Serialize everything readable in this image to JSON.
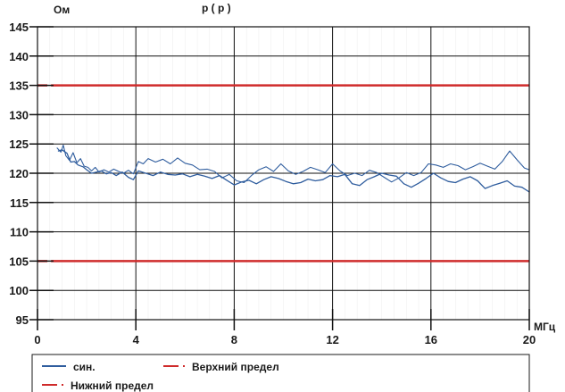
{
  "chart_data": {
    "type": "line",
    "title_fragment": "р                      (      р      )",
    "ylabel": "Ом",
    "xlabel": "МГц",
    "xlim": [
      0,
      20
    ],
    "ylim": [
      95,
      145
    ],
    "xticks": [
      0,
      4,
      8,
      12,
      16,
      20
    ],
    "xtick_labels": [
      "0",
      "4",
      "8",
      "12",
      "16",
      "20"
    ],
    "yticks": [
      95,
      100,
      105,
      110,
      115,
      120,
      125,
      130,
      135,
      140,
      145
    ],
    "ytick_labels": [
      "95",
      "100",
      "105",
      "110",
      "115",
      "120",
      "125",
      "130",
      "135",
      "140",
      "145"
    ],
    "grid": true,
    "legend_position": "bottom",
    "colors": {
      "series": "#2f5d9e",
      "limit": "#cf2b2b",
      "grid": "#111111",
      "minor_grid": "#c8c8c8"
    },
    "series": [
      {
        "name": "син.",
        "x": [
          0.8,
          0.95,
          1.05,
          1.15,
          1.3,
          1.45,
          1.6,
          1.75,
          1.9,
          2.05,
          2.2,
          2.35,
          2.5,
          2.7,
          2.9,
          3.1,
          3.3,
          3.5,
          3.7,
          3.9,
          4.1,
          4.3,
          4.5,
          4.8,
          5.1,
          5.4,
          5.7,
          6.0,
          6.3,
          6.6,
          6.9,
          7.2,
          7.5,
          7.8,
          8.1,
          8.4,
          8.7,
          9.0,
          9.3,
          9.6,
          9.9,
          10.2,
          10.5,
          10.8,
          11.1,
          11.4,
          11.7,
          12.0,
          12.3,
          12.6,
          12.9,
          13.2,
          13.5,
          13.8,
          14.1,
          14.4,
          14.7,
          15.0,
          15.3,
          15.6,
          15.9,
          16.2,
          16.5,
          16.8,
          17.1,
          17.4,
          17.7,
          18.0,
          18.3,
          18.6,
          18.9,
          19.2,
          19.5,
          19.8,
          20.0
        ],
        "y": [
          124.3,
          123.6,
          124.8,
          123.0,
          122.2,
          123.5,
          121.8,
          122.5,
          121.2,
          121.0,
          120.4,
          121.0,
          120.2,
          120.6,
          120.2,
          120.7,
          120.3,
          120.0,
          120.5,
          119.9,
          122.0,
          121.6,
          122.5,
          121.9,
          122.4,
          121.6,
          122.6,
          121.7,
          121.4,
          120.6,
          120.7,
          120.3,
          119.2,
          119.8,
          118.7,
          118.4,
          119.6,
          120.6,
          121.1,
          120.3,
          121.6,
          120.4,
          119.8,
          120.3,
          121.0,
          120.6,
          120.1,
          121.6,
          120.4,
          119.6,
          120.0,
          119.6,
          120.5,
          120.1,
          119.3,
          118.5,
          119.2,
          120.1,
          119.6,
          120.1,
          121.6,
          121.4,
          121.0,
          121.6,
          121.3,
          120.6,
          121.1,
          121.7,
          121.2,
          120.7,
          122.0,
          123.8,
          122.3,
          120.9,
          120.6
        ]
      },
      {
        "name": "син.",
        "x": [
          0.85,
          1.0,
          1.2,
          1.35,
          1.5,
          1.65,
          1.85,
          2.0,
          2.2,
          2.4,
          2.6,
          2.8,
          3.0,
          3.2,
          3.45,
          3.7,
          3.9,
          4.1,
          4.4,
          4.7,
          5.0,
          5.3,
          5.6,
          5.9,
          6.2,
          6.5,
          6.8,
          7.1,
          7.4,
          7.7,
          8.0,
          8.3,
          8.6,
          8.9,
          9.2,
          9.5,
          9.8,
          10.1,
          10.4,
          10.7,
          11.0,
          11.3,
          11.6,
          11.9,
          12.2,
          12.5,
          12.8,
          13.1,
          13.4,
          13.7,
          14.0,
          14.3,
          14.6,
          14.9,
          15.2,
          15.5,
          15.8,
          16.1,
          16.4,
          16.7,
          17.0,
          17.3,
          17.6,
          17.9,
          18.2,
          18.5,
          18.8,
          19.1,
          19.4,
          19.7,
          20.0
        ],
        "y": [
          123.8,
          124.0,
          123.4,
          121.9,
          122.0,
          121.4,
          121.1,
          120.6,
          120.0,
          120.2,
          120.4,
          119.9,
          120.1,
          119.6,
          120.2,
          119.3,
          118.9,
          120.4,
          120.0,
          119.6,
          120.2,
          119.8,
          119.7,
          119.9,
          119.4,
          119.8,
          119.5,
          119.1,
          119.6,
          118.8,
          118.0,
          118.5,
          118.8,
          118.2,
          118.9,
          119.4,
          119.1,
          118.6,
          118.2,
          118.4,
          119.0,
          118.7,
          118.9,
          119.6,
          119.4,
          119.8,
          118.2,
          117.9,
          118.9,
          119.4,
          120.0,
          119.7,
          119.5,
          118.2,
          117.6,
          118.3,
          119.1,
          120.0,
          119.2,
          118.6,
          118.4,
          119.0,
          119.4,
          118.7,
          117.4,
          117.9,
          118.3,
          118.7,
          117.8,
          117.6,
          116.8
        ]
      },
      {
        "name": "Верхний предел",
        "x": [
          0,
          20
        ],
        "y": [
          135,
          135
        ]
      },
      {
        "name": "Нижний предел",
        "x": [
          0,
          20
        ],
        "y": [
          105,
          105
        ]
      }
    ],
    "legend": [
      {
        "label": "син.",
        "marker": "solid"
      },
      {
        "label": "Верхний предел",
        "marker": "dash-dot"
      },
      {
        "label": "Нижний предел",
        "marker": "dash-dot"
      }
    ]
  }
}
